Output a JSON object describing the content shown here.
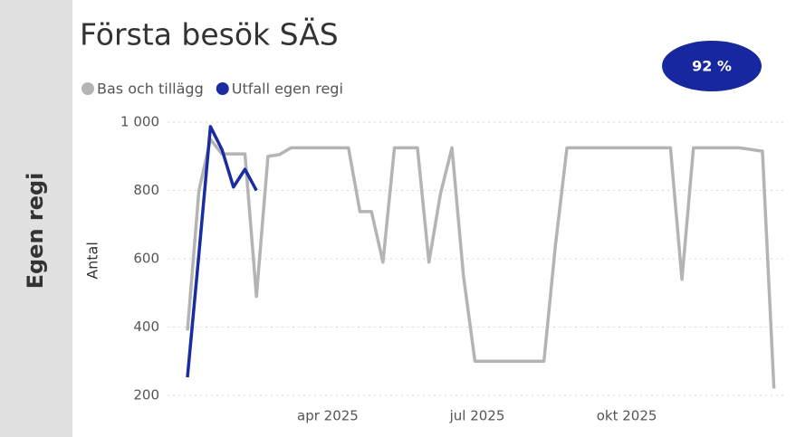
{
  "chart_data": {
    "type": "line",
    "title": "Första besök SÄS",
    "side_label": "Egen regi",
    "y_label": "Antal",
    "kpi": {
      "value": 92,
      "label": "92 %"
    },
    "x": [
      1,
      2,
      3,
      4,
      5,
      6,
      7,
      8,
      9,
      10,
      11,
      12,
      13,
      14,
      15,
      16,
      17,
      18,
      19,
      20,
      21,
      22,
      23,
      24,
      25,
      26,
      27,
      28,
      29,
      30,
      31,
      32,
      33,
      34,
      35,
      36,
      37,
      38,
      39,
      40,
      41,
      42,
      43,
      44,
      45,
      46,
      47,
      48,
      49,
      50,
      51,
      52
    ],
    "xlim": [
      0,
      53.5
    ],
    "xticks": [
      {
        "value": 13.2,
        "label": "apr 2025"
      },
      {
        "value": 26.2,
        "label": "jul 2025"
      },
      {
        "value": 39.2,
        "label": "okt 2025"
      }
    ],
    "ylim": [
      150,
      1030
    ],
    "yticks": [
      200,
      400,
      600,
      800,
      {
        "value": 1000,
        "label": "1 000"
      }
    ],
    "grid": true,
    "legend": "top-left",
    "series": [
      {
        "name": "Bas och tillägg",
        "color": "#b4b4b4",
        "values": [
          390,
          800,
          950,
          907,
          907,
          907,
          490,
          900,
          905,
          925,
          925,
          925,
          925,
          925,
          925,
          738,
          738,
          590,
          925,
          925,
          925,
          590,
          790,
          925,
          550,
          300,
          300,
          300,
          300,
          300,
          300,
          300,
          640,
          925,
          925,
          925,
          925,
          925,
          925,
          925,
          925,
          925,
          925,
          540,
          925,
          925,
          925,
          925,
          925,
          920,
          915,
          220
        ]
      },
      {
        "name": "Utfall egen regi",
        "color": "#1a2da0",
        "values": [
          253,
          615,
          987,
          920,
          810,
          862,
          800,
          null,
          null,
          null,
          null,
          null,
          null,
          null,
          null,
          null,
          null,
          null,
          null,
          null,
          null,
          null,
          null,
          null,
          null,
          null,
          null,
          null,
          null,
          null,
          null,
          null,
          null,
          null,
          null,
          null,
          null,
          null,
          null,
          null,
          null,
          null,
          null,
          null,
          null,
          null,
          null,
          null,
          null,
          null,
          null,
          null
        ]
      }
    ]
  }
}
